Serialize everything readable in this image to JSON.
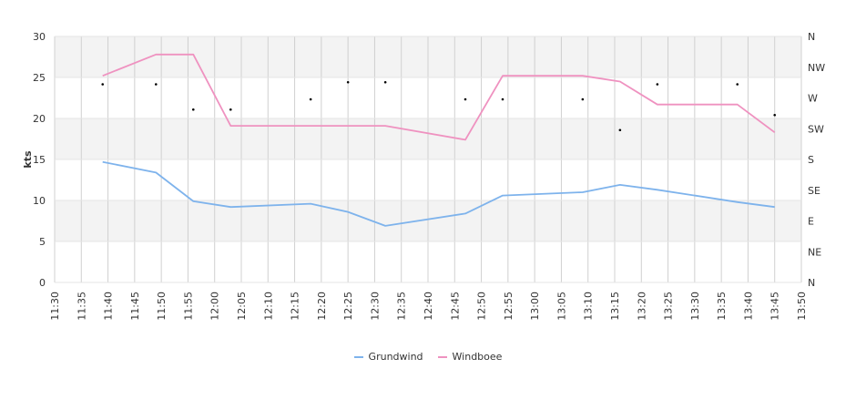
{
  "chart_data": {
    "type": "line",
    "ylabel": "kts",
    "ylim": [
      0,
      30
    ],
    "y_ticks": [
      0,
      5,
      10,
      15,
      20,
      25,
      30
    ],
    "x_ticks": [
      "11:30",
      "11:35",
      "11:40",
      "11:45",
      "11:50",
      "11:55",
      "12:00",
      "12:05",
      "12:10",
      "12:15",
      "12:20",
      "12:25",
      "12:30",
      "12:35",
      "12:40",
      "12:45",
      "12:50",
      "12:55",
      "13:00",
      "13:05",
      "13:10",
      "13:15",
      "13:20",
      "13:25",
      "13:30",
      "13:35",
      "13:40",
      "13:45",
      "13:50"
    ],
    "x_range": [
      "11:30",
      "13:50"
    ],
    "direction_axis": {
      "labels": [
        "N",
        "NE",
        "E",
        "SE",
        "S",
        "SW",
        "W",
        "NW",
        "N"
      ],
      "range_degrees": [
        0,
        360
      ]
    },
    "background_bands": true,
    "grid": true,
    "legend_position": "bottom",
    "series": [
      {
        "name": "Grundwind",
        "color": "#7eb3ec",
        "x": [
          "11:39",
          "11:49",
          "11:56",
          "12:03",
          "12:18",
          "12:25",
          "12:32",
          "12:47",
          "12:54",
          "13:09",
          "13:16",
          "13:23",
          "13:38",
          "13:45"
        ],
        "values": [
          14.7,
          13.4,
          9.9,
          9.2,
          9.6,
          8.6,
          6.9,
          8.4,
          10.6,
          11.0,
          11.9,
          11.3,
          9.8,
          9.2
        ]
      },
      {
        "name": "Windboee",
        "color": "#ef92c0",
        "x": [
          "11:39",
          "11:49",
          "11:56",
          "12:03",
          "12:18",
          "12:25",
          "12:32",
          "12:47",
          "12:54",
          "13:09",
          "13:16",
          "13:23",
          "13:38",
          "13:45"
        ],
        "values": [
          25.2,
          27.8,
          27.8,
          19.1,
          19.1,
          19.1,
          19.1,
          17.4,
          25.2,
          25.2,
          24.5,
          21.7,
          21.7,
          18.3
        ]
      }
    ],
    "direction_points": {
      "x": [
        "11:39",
        "11:49",
        "11:56",
        "12:03",
        "12:18",
        "12:25",
        "12:32",
        "12:47",
        "12:54",
        "13:09",
        "13:16",
        "13:23",
        "13:38",
        "13:45"
      ],
      "degrees": [
        290,
        290,
        253,
        253,
        268,
        293,
        293,
        268,
        268,
        268,
        223,
        290,
        290,
        245
      ]
    }
  }
}
